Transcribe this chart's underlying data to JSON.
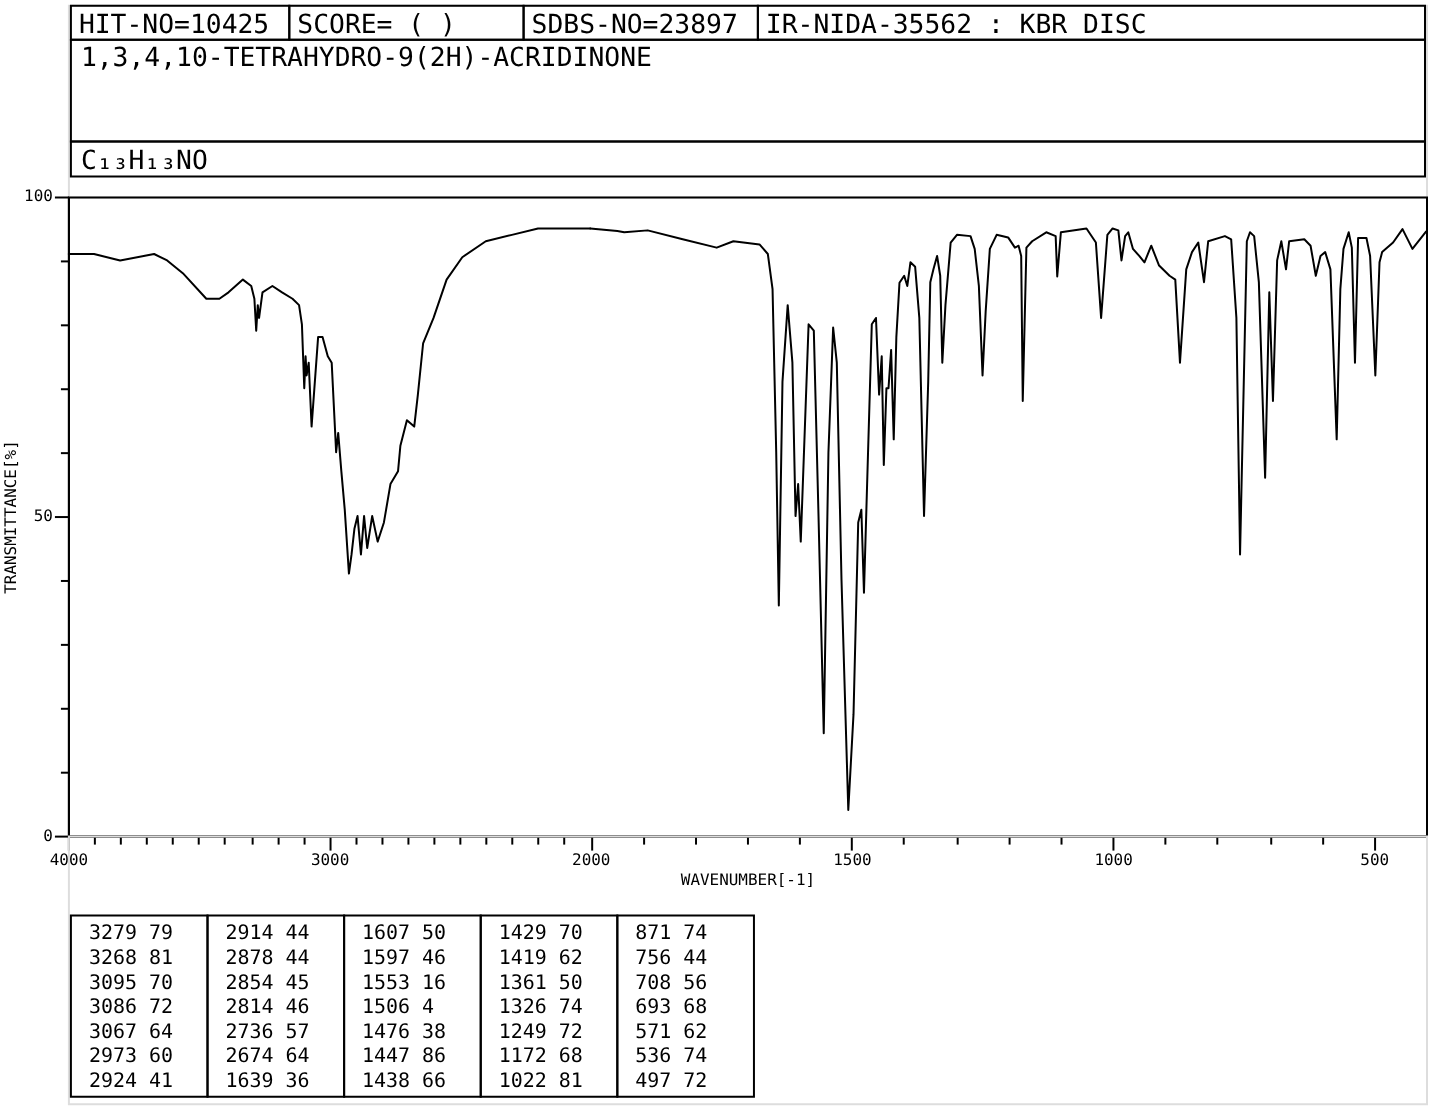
{
  "chart_data": [
    {
      "type": "other",
      "title": "1,3,4,10-TETRAHYDRO-9(2H)-ACRIDINONE",
      "subtitle": "C₁₃H₁₃NO",
      "annotations": [
        "HIT-NO=10425",
        "SCORE=  (   )",
        "SDBS-NO=23897",
        "IR-NIDA-35562 : KBR DISC"
      ]
    },
    {
      "type": "line",
      "ylabel": "TRANSMITTANCE[%]",
      "xlim": [
        4000,
        2000
      ],
      "xticks": [
        4000,
        {
          "value": 3900,
          "label": null
        },
        {
          "value": 3800,
          "label": null
        },
        {
          "value": 3700,
          "label": null
        },
        {
          "value": 3600,
          "label": null
        },
        {
          "value": 3500,
          "label": null
        },
        {
          "value": 3400,
          "label": null
        },
        {
          "value": 3300,
          "label": null
        },
        {
          "value": 3200,
          "label": null
        },
        {
          "value": 3100,
          "label": null
        },
        3000,
        {
          "value": 2900,
          "label": null
        },
        {
          "value": 2800,
          "label": null
        },
        {
          "value": 2700,
          "label": null
        },
        {
          "value": 2600,
          "label": null
        },
        {
          "value": 2500,
          "label": null
        },
        {
          "value": 2400,
          "label": null
        },
        {
          "value": 2300,
          "label": null
        },
        {
          "value": 2200,
          "label": null
        },
        {
          "value": 2100,
          "label": null
        }
      ],
      "ylim": [
        0,
        100
      ],
      "yticks": [
        0,
        {
          "value": 10,
          "label": null
        },
        {
          "value": 20,
          "label": null
        },
        {
          "value": 30,
          "label": null
        },
        {
          "value": 40,
          "label": null
        },
        50,
        {
          "value": 60,
          "label": null
        },
        {
          "value": 70,
          "label": null
        },
        {
          "value": 80,
          "label": null
        },
        {
          "value": 90,
          "label": null
        },
        100
      ],
      "grid": false,
      "x": [
        4000,
        3900,
        3800,
        3670,
        3620,
        3560,
        3470,
        3420,
        3385,
        3330,
        3298,
        3286,
        3279,
        3273,
        3268,
        3255,
        3217,
        3180,
        3140,
        3115,
        3104,
        3095,
        3090,
        3086,
        3078,
        3067,
        3042,
        3025,
        3005,
        2990,
        2973,
        2965,
        2953,
        2940,
        2924,
        2914,
        2903,
        2891,
        2878,
        2866,
        2854,
        2835,
        2814,
        2790,
        2765,
        2736,
        2727,
        2702,
        2674,
        2660,
        2640,
        2600,
        2550,
        2490,
        2400,
        2300,
        2200,
        2050,
        2010,
        2000
      ],
      "series": [
        {
          "color": "#000000",
          "values": [
            91,
            91,
            90,
            91,
            90,
            88,
            84,
            84,
            85,
            87,
            86,
            84,
            79,
            83,
            81,
            85,
            86,
            85,
            84,
            83,
            80,
            70,
            75,
            72,
            74,
            64,
            78,
            78,
            75,
            74,
            60,
            63,
            57,
            51,
            41,
            44,
            48,
            50,
            44,
            50,
            45,
            50,
            46,
            49,
            55,
            57,
            61,
            65,
            64,
            69,
            77,
            81,
            87,
            90.5,
            93,
            94,
            95,
            95,
            95,
            95
          ]
        }
      ]
    },
    {
      "type": "line",
      "xlabel": "WAVENUMBER[-1]",
      "xlim": [
        2000,
        400
      ],
      "xticks": [
        2000,
        {
          "value": 1900,
          "label": null
        },
        {
          "value": 1800,
          "label": null
        },
        {
          "value": 1700,
          "label": null
        },
        {
          "value": 1600,
          "label": null
        },
        1500,
        {
          "value": 1400,
          "label": null
        },
        {
          "value": 1300,
          "label": null
        },
        {
          "value": 1200,
          "label": null
        },
        {
          "value": 1100,
          "label": null
        },
        1000,
        {
          "value": 900,
          "label": null
        },
        {
          "value": 800,
          "label": null
        },
        {
          "value": 700,
          "label": null
        },
        {
          "value": 600,
          "label": null
        },
        500
      ],
      "ylim": [
        0,
        100
      ],
      "tick_labels": "x",
      "grid": false,
      "x": [
        2000,
        1948,
        1935,
        1890,
        1823,
        1758,
        1726,
        1676,
        1660,
        1651,
        1644,
        1639,
        1632,
        1622,
        1613,
        1607,
        1602,
        1597,
        1582,
        1572,
        1563,
        1553,
        1544,
        1535,
        1528,
        1519,
        1506,
        1496,
        1487,
        1481,
        1476,
        1468,
        1461,
        1453,
        1447,
        1442,
        1438,
        1433,
        1429,
        1424,
        1419,
        1414,
        1408,
        1399,
        1393,
        1387,
        1378,
        1370,
        1361,
        1353,
        1349,
        1343,
        1336,
        1330,
        1326,
        1320,
        1310,
        1298,
        1272,
        1264,
        1256,
        1249,
        1243,
        1235,
        1222,
        1200,
        1187,
        1180,
        1175,
        1172,
        1165,
        1154,
        1127,
        1109,
        1106,
        1099,
        1050,
        1032,
        1022,
        1010,
        1000,
        989,
        983,
        976,
        970,
        961,
        949,
        939,
        926,
        911,
        891,
        880,
        871,
        859,
        848,
        836,
        825,
        817,
        785,
        773,
        763,
        756,
        743,
        737,
        729,
        720,
        708,
        700,
        693,
        685,
        677,
        668,
        662,
        633,
        621,
        611,
        602,
        593,
        583,
        571,
        564,
        558,
        548,
        542,
        536,
        530,
        514,
        507,
        497,
        489,
        484,
        463,
        445,
        426,
        400
      ],
      "series": [
        {
          "color": "#000000",
          "values": [
            95,
            94.6,
            94.4,
            94.7,
            93.3,
            92,
            93,
            92.5,
            91,
            85.5,
            60,
            36,
            71,
            83,
            74,
            50,
            55,
            46,
            80,
            79,
            50,
            16,
            60,
            79.5,
            74,
            40,
            4,
            19,
            49,
            51,
            38,
            60.5,
            80,
            81,
            69,
            75,
            58,
            70,
            70,
            76,
            62,
            78,
            86.5,
            87.6,
            86,
            89.7,
            89,
            81,
            50,
            71,
            86.6,
            88.6,
            90.7,
            87.6,
            74,
            83,
            92.8,
            94,
            93.8,
            91.8,
            86,
            72,
            82,
            91.8,
            94,
            93.6,
            92,
            92.3,
            90.7,
            68,
            92,
            93,
            94.4,
            93.8,
            87.5,
            94.4,
            95,
            92.8,
            81,
            94,
            95,
            94.7,
            90,
            93.8,
            94.4,
            91.8,
            90.7,
            89.7,
            92.3,
            89.2,
            87.6,
            87,
            74,
            88.6,
            91.3,
            92.8,
            86.6,
            93,
            93.8,
            93.3,
            81,
            44,
            93,
            94.4,
            93.8,
            86.6,
            56,
            85,
            68,
            90,
            93,
            88.6,
            93,
            93.3,
            92.3,
            87.6,
            90.7,
            91.3,
            88.6,
            62,
            85.5,
            91.8,
            94.4,
            92,
            74,
            93.5,
            93.5,
            90.7,
            72,
            89.7,
            91.3,
            92.8,
            94.9,
            91.8,
            94.5
          ]
        }
      ]
    },
    {
      "type": "other",
      "annotations": [
        "3279 79",
        "3268 81",
        "3095 70",
        "3086 72",
        "3067 64",
        "2973 60",
        "2924 41",
        "2914 44",
        "2878 44",
        "2854 45",
        "2814 46",
        "2736 57",
        "2674 64",
        "1639 36",
        "1607 50",
        "1597 46",
        "1553 16",
        "1506 4",
        "1476 38",
        "1447 86",
        "1438 66",
        "1429 70",
        "1419 62",
        "1361 50",
        "1326 74",
        "1249 72",
        "1172 68",
        "1022 81",
        "871 74",
        "756 44",
        "708 56",
        "693 68",
        "571 62",
        "536 74",
        "497 72"
      ]
    }
  ]
}
